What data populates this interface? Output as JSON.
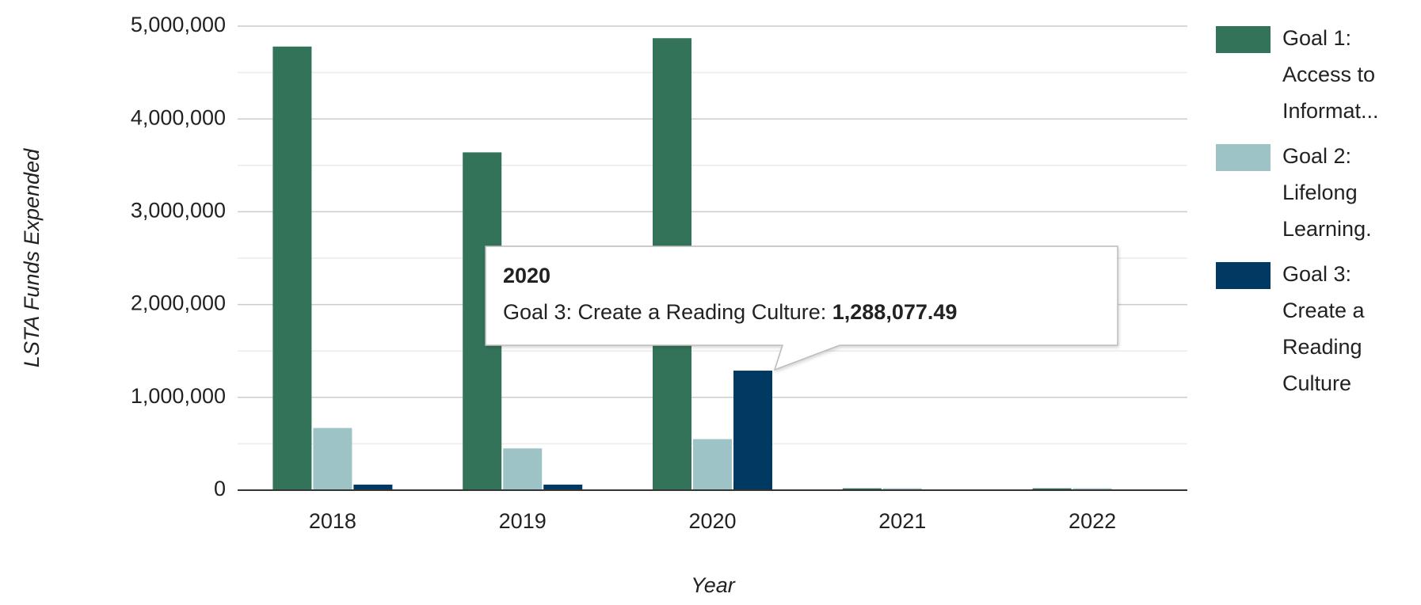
{
  "chart_data": {
    "type": "bar",
    "x_label": "Year",
    "y_label": "LSTA Funds Expended",
    "categories": [
      "2018",
      "2019",
      "2020",
      "2021",
      "2022"
    ],
    "series": [
      {
        "name": "Goal 1: Access to Informat...",
        "color": "#33735a",
        "values": [
          4780000,
          3640000,
          4870000,
          20000,
          20000
        ]
      },
      {
        "name": "Goal 2: Lifelong Learning.",
        "color": "#9dc3c6",
        "values": [
          670000,
          450000,
          550000,
          20000,
          20000
        ]
      },
      {
        "name": "Goal 3: Create a Reading Culture",
        "color": "#003a63",
        "values": [
          60000,
          60000,
          1288077.49,
          0,
          0
        ]
      }
    ],
    "ylim": [
      0,
      5000000
    ],
    "yticks": [
      {
        "value": 0,
        "label": "0"
      },
      {
        "value": 1000000,
        "label": "1,000,000"
      },
      {
        "value": 2000000,
        "label": "2,000,000"
      },
      {
        "value": 3000000,
        "label": "3,000,000"
      },
      {
        "value": 4000000,
        "label": "4,000,000"
      },
      {
        "value": 5000000,
        "label": "5,000,000"
      }
    ],
    "minor_yticks": [
      500000,
      1500000,
      2500000,
      3500000,
      4500000
    ],
    "grid": true,
    "legend": "right",
    "tooltip": {
      "title": "2020",
      "series_label": "Goal 3: Create a Reading Culture:",
      "value_label": "1,288,077.49"
    }
  }
}
